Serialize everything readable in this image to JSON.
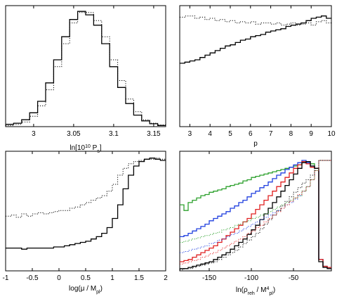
{
  "chart_data": [
    {
      "type": "line",
      "xlabel": "ln[10¹⁰ Pₛ]",
      "xlabel_parts": {
        "base": "ln[10",
        "sup": "10",
        "mid": " P",
        "sub": "s",
        "end": "]"
      },
      "xlim": [
        2.965,
        3.165
      ],
      "ylim": [
        0,
        1.05
      ],
      "xticks": [
        3,
        3.05,
        3.1,
        3.15
      ],
      "xtick_labels": [
        "3",
        "3.05",
        "3.1",
        "3.15"
      ],
      "step": true,
      "series": [
        {
          "style": "solid",
          "color": "#000000",
          "x": [
            2.965,
            2.975,
            2.985,
            2.995,
            3.005,
            3.015,
            3.025,
            3.035,
            3.045,
            3.055,
            3.065,
            3.075,
            3.085,
            3.095,
            3.105,
            3.115,
            3.125,
            3.135,
            3.145,
            3.155
          ],
          "y": [
            0.02,
            0.03,
            0.06,
            0.12,
            0.22,
            0.38,
            0.58,
            0.78,
            0.93,
            1.0,
            0.97,
            0.88,
            0.72,
            0.52,
            0.34,
            0.2,
            0.1,
            0.05,
            0.025,
            0.01
          ]
        },
        {
          "style": "dotted",
          "color": "#000000",
          "x": [
            2.965,
            2.975,
            2.985,
            2.995,
            3.005,
            3.015,
            3.025,
            3.035,
            3.045,
            3.055,
            3.065,
            3.075,
            3.085,
            3.095,
            3.105,
            3.115,
            3.125,
            3.135,
            3.145,
            3.155
          ],
          "y": [
            0.01,
            0.02,
            0.04,
            0.09,
            0.18,
            0.32,
            0.52,
            0.72,
            0.9,
            0.99,
            0.99,
            0.92,
            0.78,
            0.58,
            0.4,
            0.24,
            0.13,
            0.06,
            0.03,
            0.015
          ]
        }
      ]
    },
    {
      "type": "line",
      "xlabel": "p",
      "xlim": [
        2.5,
        10
      ],
      "ylim": [
        0,
        1.05
      ],
      "xticks": [
        3,
        4,
        5,
        6,
        7,
        8,
        9,
        10
      ],
      "xtick_labels": [
        "3",
        "4",
        "5",
        "6",
        "7",
        "8",
        "9",
        "10"
      ],
      "step": true,
      "series": [
        {
          "style": "solid",
          "color": "#000000",
          "x": [
            2.5,
            2.75,
            3,
            3.25,
            3.5,
            3.75,
            4,
            4.25,
            4.5,
            4.75,
            5,
            5.25,
            5.5,
            5.75,
            6,
            6.25,
            6.5,
            6.75,
            7,
            7.25,
            7.5,
            7.75,
            8,
            8.25,
            8.5,
            8.75,
            9,
            9.25,
            9.5,
            9.75
          ],
          "y": [
            0.55,
            0.56,
            0.57,
            0.58,
            0.6,
            0.62,
            0.64,
            0.66,
            0.68,
            0.7,
            0.71,
            0.73,
            0.75,
            0.76,
            0.78,
            0.79,
            0.8,
            0.82,
            0.83,
            0.84,
            0.85,
            0.87,
            0.88,
            0.89,
            0.9,
            0.92,
            0.94,
            0.95,
            0.96,
            0.94
          ]
        },
        {
          "style": "dotted",
          "color": "#000000",
          "x": [
            2.5,
            2.75,
            3,
            3.25,
            3.5,
            3.75,
            4,
            4.25,
            4.5,
            4.75,
            5,
            5.25,
            5.5,
            5.75,
            6,
            6.25,
            6.5,
            6.75,
            7,
            7.25,
            7.5,
            7.75,
            8,
            8.25,
            8.5,
            8.75,
            9,
            9.25,
            9.5,
            9.75
          ],
          "y": [
            0.95,
            0.96,
            0.96,
            0.94,
            0.95,
            0.93,
            0.94,
            0.92,
            0.93,
            0.91,
            0.92,
            0.9,
            0.91,
            0.9,
            0.91,
            0.89,
            0.9,
            0.9,
            0.89,
            0.9,
            0.88,
            0.89,
            0.9,
            0.88,
            0.89,
            0.9,
            0.88,
            0.91,
            0.92,
            0.9
          ]
        }
      ]
    },
    {
      "type": "line",
      "xlabel": "log(μ / Mₚₗ)",
      "xlabel_parts": {
        "base": "log(μ / M",
        "sub": "pl",
        "end": ")"
      },
      "xlim": [
        -1,
        2
      ],
      "ylim": [
        0,
        1.05
      ],
      "xticks": [
        -1,
        -0.5,
        0,
        0.5,
        1,
        1.5,
        2
      ],
      "xtick_labels": [
        "-1",
        "-0.5",
        "0",
        "0.5",
        "1",
        "1.5",
        "2"
      ],
      "step": true,
      "series": [
        {
          "style": "solid",
          "color": "#000000",
          "x": [
            -1,
            -0.9,
            -0.8,
            -0.7,
            -0.6,
            -0.5,
            -0.4,
            -0.3,
            -0.2,
            -0.1,
            0,
            0.1,
            0.2,
            0.3,
            0.4,
            0.5,
            0.6,
            0.7,
            0.8,
            0.9,
            1,
            1.1,
            1.2,
            1.3,
            1.4,
            1.5,
            1.6,
            1.7,
            1.8,
            1.9
          ],
          "y": [
            0.2,
            0.2,
            0.2,
            0.19,
            0.2,
            0.2,
            0.2,
            0.2,
            0.2,
            0.21,
            0.21,
            0.22,
            0.23,
            0.24,
            0.25,
            0.26,
            0.28,
            0.3,
            0.33,
            0.38,
            0.46,
            0.58,
            0.72,
            0.84,
            0.92,
            0.96,
            0.98,
            0.99,
            0.98,
            0.97
          ]
        },
        {
          "style": "dotted",
          "color": "#000000",
          "x": [
            -1,
            -0.9,
            -0.8,
            -0.7,
            -0.6,
            -0.5,
            -0.4,
            -0.3,
            -0.2,
            -0.1,
            0,
            0.1,
            0.2,
            0.3,
            0.4,
            0.5,
            0.6,
            0.7,
            0.8,
            0.9,
            1,
            1.1,
            1.2,
            1.3,
            1.4,
            1.5,
            1.6,
            1.7,
            1.8,
            1.9
          ],
          "y": [
            0.48,
            0.49,
            0.47,
            0.5,
            0.48,
            0.5,
            0.51,
            0.5,
            0.51,
            0.52,
            0.53,
            0.53,
            0.55,
            0.56,
            0.58,
            0.6,
            0.62,
            0.64,
            0.66,
            0.7,
            0.76,
            0.84,
            0.9,
            0.94,
            0.96,
            0.97,
            0.98,
            0.98,
            0.99,
            0.98
          ]
        }
      ]
    },
    {
      "type": "line",
      "xlabel": "ln(ρᵣₑₕ / Mₚₗ⁴)",
      "xlabel_parts": {
        "base": "ln(ρ",
        "sub": "reh",
        "mid": " / M",
        "sup": "4",
        "sub2": "pl",
        "end": ")"
      },
      "xlim": [
        -185,
        -5
      ],
      "ylim": [
        0,
        1.05
      ],
      "xticks": [
        -150,
        -100,
        -50
      ],
      "xtick_labels": [
        "-150",
        "-100",
        "-50"
      ],
      "step": true,
      "series": [
        {
          "style": "solid",
          "color": "#2ca02c",
          "x": [
            -185,
            -180,
            -175,
            -170,
            -165,
            -160,
            -155,
            -150,
            -145,
            -140,
            -135,
            -130,
            -125,
            -120,
            -115,
            -110,
            -105,
            -100,
            -95,
            -90,
            -85,
            -80,
            -75,
            -70,
            -65,
            -60,
            -55,
            -50,
            -45,
            -40,
            -35,
            -30,
            -25,
            -20,
            -15,
            -10
          ],
          "y": [
            0.58,
            0.53,
            0.6,
            0.62,
            0.64,
            0.66,
            0.67,
            0.69,
            0.7,
            0.71,
            0.72,
            0.74,
            0.75,
            0.76,
            0.77,
            0.79,
            0.8,
            0.82,
            0.83,
            0.84,
            0.85,
            0.86,
            0.87,
            0.88,
            0.89,
            0.9,
            0.91,
            0.92,
            0.93,
            0.95,
            0.96,
            0.94,
            0.9,
            0.1,
            0.04,
            0.03
          ]
        },
        {
          "style": "solid",
          "color": "#1f3fdf",
          "x": [
            -185,
            -180,
            -175,
            -170,
            -165,
            -160,
            -155,
            -150,
            -145,
            -140,
            -135,
            -130,
            -125,
            -120,
            -115,
            -110,
            -105,
            -100,
            -95,
            -90,
            -85,
            -80,
            -75,
            -70,
            -65,
            -60,
            -55,
            -50,
            -45,
            -40,
            -35,
            -30,
            -25,
            -20,
            -15,
            -10
          ],
          "y": [
            0.3,
            0.31,
            0.33,
            0.35,
            0.37,
            0.39,
            0.41,
            0.44,
            0.46,
            0.48,
            0.5,
            0.52,
            0.55,
            0.57,
            0.6,
            0.62,
            0.65,
            0.68,
            0.7,
            0.73,
            0.75,
            0.78,
            0.81,
            0.84,
            0.86,
            0.89,
            0.91,
            0.93,
            0.95,
            0.97,
            0.95,
            0.92,
            0.9,
            0.1,
            0.04,
            0.03
          ]
        },
        {
          "style": "solid",
          "color": "#e02020",
          "x": [
            -185,
            -180,
            -175,
            -170,
            -165,
            -160,
            -155,
            -150,
            -145,
            -140,
            -135,
            -130,
            -125,
            -120,
            -115,
            -110,
            -105,
            -100,
            -95,
            -90,
            -85,
            -80,
            -75,
            -70,
            -65,
            -60,
            -55,
            -50,
            -45,
            -40,
            -35,
            -30,
            -25,
            -20,
            -15,
            -10
          ],
          "y": [
            0.08,
            0.09,
            0.1,
            0.12,
            0.14,
            0.16,
            0.18,
            0.2,
            0.22,
            0.25,
            0.28,
            0.31,
            0.34,
            0.37,
            0.4,
            0.43,
            0.46,
            0.5,
            0.54,
            0.58,
            0.62,
            0.66,
            0.7,
            0.74,
            0.78,
            0.82,
            0.86,
            0.9,
            0.93,
            0.96,
            0.94,
            0.91,
            0.9,
            0.1,
            0.04,
            0.03
          ]
        },
        {
          "style": "solid",
          "color": "#000000",
          "x": [
            -185,
            -180,
            -175,
            -170,
            -165,
            -160,
            -155,
            -150,
            -145,
            -140,
            -135,
            -130,
            -125,
            -120,
            -115,
            -110,
            -105,
            -100,
            -95,
            -90,
            -85,
            -80,
            -75,
            -70,
            -65,
            -60,
            -55,
            -50,
            -45,
            -40,
            -35,
            -30,
            -25,
            -20,
            -15,
            -10
          ],
          "y": [
            0.02,
            0.02,
            0.03,
            0.04,
            0.05,
            0.06,
            0.07,
            0.08,
            0.1,
            0.12,
            0.14,
            0.16,
            0.19,
            0.22,
            0.25,
            0.28,
            0.32,
            0.36,
            0.4,
            0.45,
            0.5,
            0.55,
            0.6,
            0.65,
            0.7,
            0.75,
            0.8,
            0.85,
            0.9,
            0.95,
            0.96,
            0.92,
            0.9,
            0.08,
            0.03,
            0.02
          ]
        },
        {
          "style": "dotted",
          "color": "#2ca02c",
          "x": [
            -185,
            -180,
            -175,
            -170,
            -165,
            -160,
            -155,
            -150,
            -145,
            -140,
            -135,
            -130,
            -125,
            -120,
            -115,
            -110,
            -105,
            -100,
            -95,
            -90,
            -85,
            -80,
            -75,
            -70,
            -65,
            -60,
            -55,
            -50,
            -45,
            -40,
            -35,
            -30,
            -25,
            -20,
            -15,
            -10
          ],
          "y": [
            0.25,
            0.26,
            0.27,
            0.28,
            0.29,
            0.3,
            0.31,
            0.32,
            0.33,
            0.34,
            0.36,
            0.37,
            0.38,
            0.4,
            0.41,
            0.43,
            0.44,
            0.46,
            0.47,
            0.49,
            0.5,
            0.52,
            0.54,
            0.56,
            0.58,
            0.6,
            0.62,
            0.64,
            0.66,
            0.7,
            0.74,
            0.8,
            0.88,
            0.97,
            0.97,
            0.97
          ]
        },
        {
          "style": "dotted",
          "color": "#1f3fdf",
          "x": [
            -185,
            -180,
            -175,
            -170,
            -165,
            -160,
            -155,
            -150,
            -145,
            -140,
            -135,
            -130,
            -125,
            -120,
            -115,
            -110,
            -105,
            -100,
            -95,
            -90,
            -85,
            -80,
            -75,
            -70,
            -65,
            -60,
            -55,
            -50,
            -45,
            -40,
            -35,
            -30,
            -25,
            -20,
            -15,
            -10
          ],
          "y": [
            0.16,
            0.17,
            0.18,
            0.19,
            0.2,
            0.21,
            0.22,
            0.24,
            0.25,
            0.27,
            0.28,
            0.3,
            0.32,
            0.33,
            0.35,
            0.37,
            0.39,
            0.41,
            0.43,
            0.45,
            0.47,
            0.49,
            0.51,
            0.53,
            0.55,
            0.58,
            0.6,
            0.63,
            0.66,
            0.7,
            0.74,
            0.8,
            0.88,
            0.97,
            0.97,
            0.97
          ]
        },
        {
          "style": "dotted",
          "color": "#e02020",
          "x": [
            -185,
            -180,
            -175,
            -170,
            -165,
            -160,
            -155,
            -150,
            -145,
            -140,
            -135,
            -130,
            -125,
            -120,
            -115,
            -110,
            -105,
            -100,
            -95,
            -90,
            -85,
            -80,
            -75,
            -70,
            -65,
            -60,
            -55,
            -50,
            -45,
            -40,
            -35,
            -30,
            -25,
            -20,
            -15,
            -10
          ],
          "y": [
            0.06,
            0.07,
            0.08,
            0.09,
            0.1,
            0.12,
            0.13,
            0.15,
            0.16,
            0.18,
            0.2,
            0.22,
            0.24,
            0.26,
            0.28,
            0.3,
            0.33,
            0.35,
            0.38,
            0.4,
            0.43,
            0.46,
            0.49,
            0.52,
            0.55,
            0.58,
            0.61,
            0.64,
            0.67,
            0.7,
            0.74,
            0.8,
            0.88,
            0.97,
            0.97,
            0.97
          ]
        },
        {
          "style": "dotted",
          "color": "#000000",
          "x": [
            -185,
            -180,
            -175,
            -170,
            -165,
            -160,
            -155,
            -150,
            -145,
            -140,
            -135,
            -130,
            -125,
            -120,
            -115,
            -110,
            -105,
            -100,
            -95,
            -90,
            -85,
            -80,
            -75,
            -70,
            -65,
            -60,
            -55,
            -50,
            -45,
            -40,
            -35,
            -30,
            -25,
            -20,
            -15,
            -10
          ],
          "y": [
            0.01,
            0.02,
            0.02,
            0.03,
            0.04,
            0.05,
            0.06,
            0.07,
            0.08,
            0.1,
            0.12,
            0.14,
            0.16,
            0.18,
            0.21,
            0.24,
            0.27,
            0.3,
            0.33,
            0.37,
            0.41,
            0.45,
            0.49,
            0.53,
            0.57,
            0.61,
            0.65,
            0.69,
            0.73,
            0.77,
            0.8,
            0.84,
            0.9,
            0.97,
            0.97,
            0.97
          ]
        }
      ]
    }
  ]
}
